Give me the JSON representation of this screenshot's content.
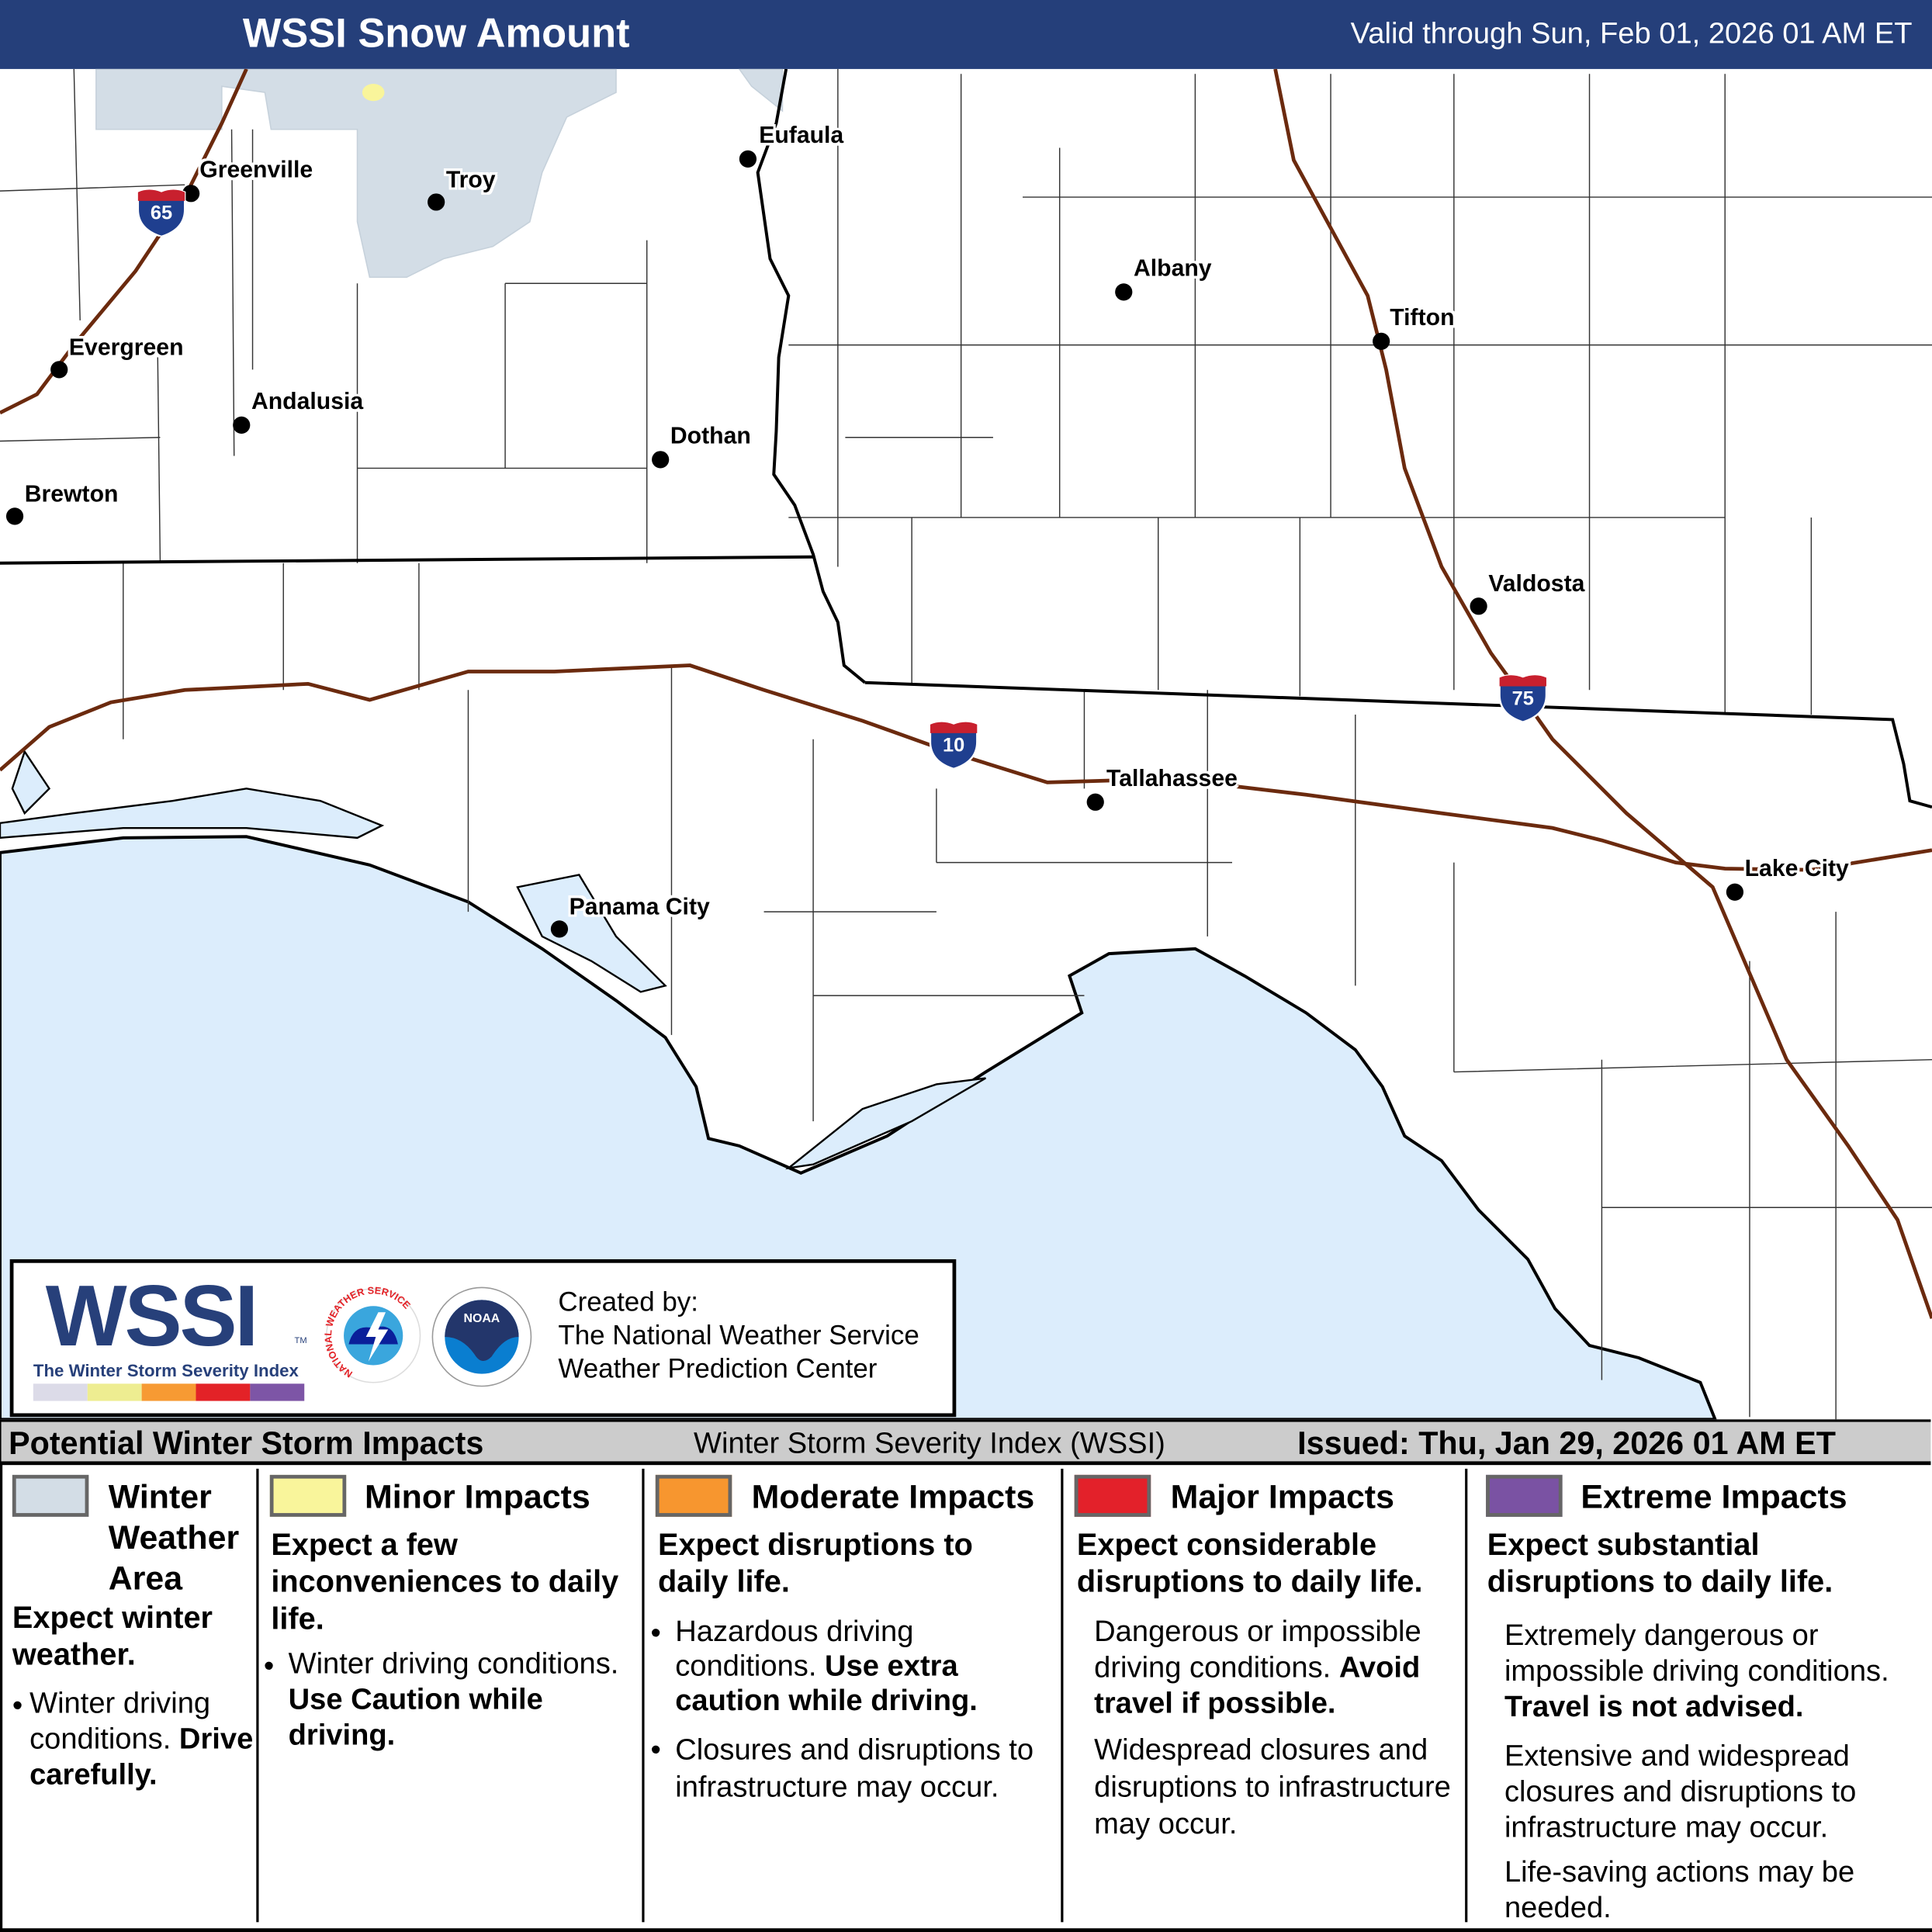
{
  "header": {
    "title": "WSSI Snow Amount",
    "valid": "Valid through Sun, Feb 01, 2026 01 AM ET"
  },
  "map": {
    "colors": {
      "ocean": "#dcedfc",
      "land": "#ffffff",
      "winter_weather_area": "#d3dde6",
      "minor": "#f9f59b",
      "interstate": "#6b2a0e",
      "border": "#000000"
    },
    "cities": [
      {
        "name": "Greenville"
      },
      {
        "name": "Troy"
      },
      {
        "name": "Eufaula"
      },
      {
        "name": "Albany"
      },
      {
        "name": "Tifton"
      },
      {
        "name": "Evergreen"
      },
      {
        "name": "Andalusia"
      },
      {
        "name": "Dothan"
      },
      {
        "name": "Brewton"
      },
      {
        "name": "Valdosta"
      },
      {
        "name": "Tallahassee"
      },
      {
        "name": "Lake City"
      },
      {
        "name": "Panama City"
      }
    ],
    "interstates": [
      {
        "number": "65"
      },
      {
        "number": "10"
      },
      {
        "number": "75"
      }
    ]
  },
  "logo": {
    "wssi": "WSSI",
    "tm": "TM",
    "subtitle": "The Winter Storm Severity Index",
    "nws": "NATIONAL WEATHER SERVICE",
    "noaa": "NOAA",
    "colors": [
      "#dcdbe8",
      "#eeed91",
      "#f79a33",
      "#e32227",
      "#7d55a6"
    ],
    "credit_1": "Created by:",
    "credit_2": "The National Weather Service",
    "credit_3": "Weather Prediction Center"
  },
  "bar": {
    "left": "Potential Winter Storm Impacts",
    "middle": "Winter Storm Severity Index (WSSI)",
    "right": "Issued: Thu, Jan 29, 2026 01 AM ET"
  },
  "legend": [
    {
      "title": "Winter Weather Area",
      "color": "#d3dde6",
      "lead": "Expect winter weather.",
      "b1": "Winter driving conditions.",
      "b1_bold": "Drive carefully."
    },
    {
      "title": "Minor Impacts",
      "color": "#f9f59b",
      "lead": "Expect a few inconveniences to daily life.",
      "b1": "Winter driving conditions.",
      "b1_bold": "Use Caution while driving."
    },
    {
      "title": "Moderate Impacts",
      "color": "#f7962f",
      "lead": "Expect disruptions to daily life.",
      "b1": "Hazardous driving conditions.",
      "b1_bold": "Use extra caution while driving.",
      "b2": "Closures and disruptions to infrastructure may occur."
    },
    {
      "title": "Major Impacts",
      "color": "#e3212a",
      "lead": "Expect considerable disruptions to daily life.",
      "b1": "Dangerous or impossible driving conditions.",
      "b1_bold": "Avoid travel if possible.",
      "b2": "Widespread closures and disruptions to infrastructure may occur."
    },
    {
      "title": "Extreme Impacts",
      "color": "#7a52a3",
      "lead": "Expect substantial disruptions to daily life.",
      "b1": "Extremely dangerous or impossible driving conditions.",
      "b1_bold": "Travel is not advised.",
      "b2": "Extensive and widespread closures and disruptions to infrastructure may occur.",
      "b3": "Life-saving actions may be needed."
    }
  ]
}
